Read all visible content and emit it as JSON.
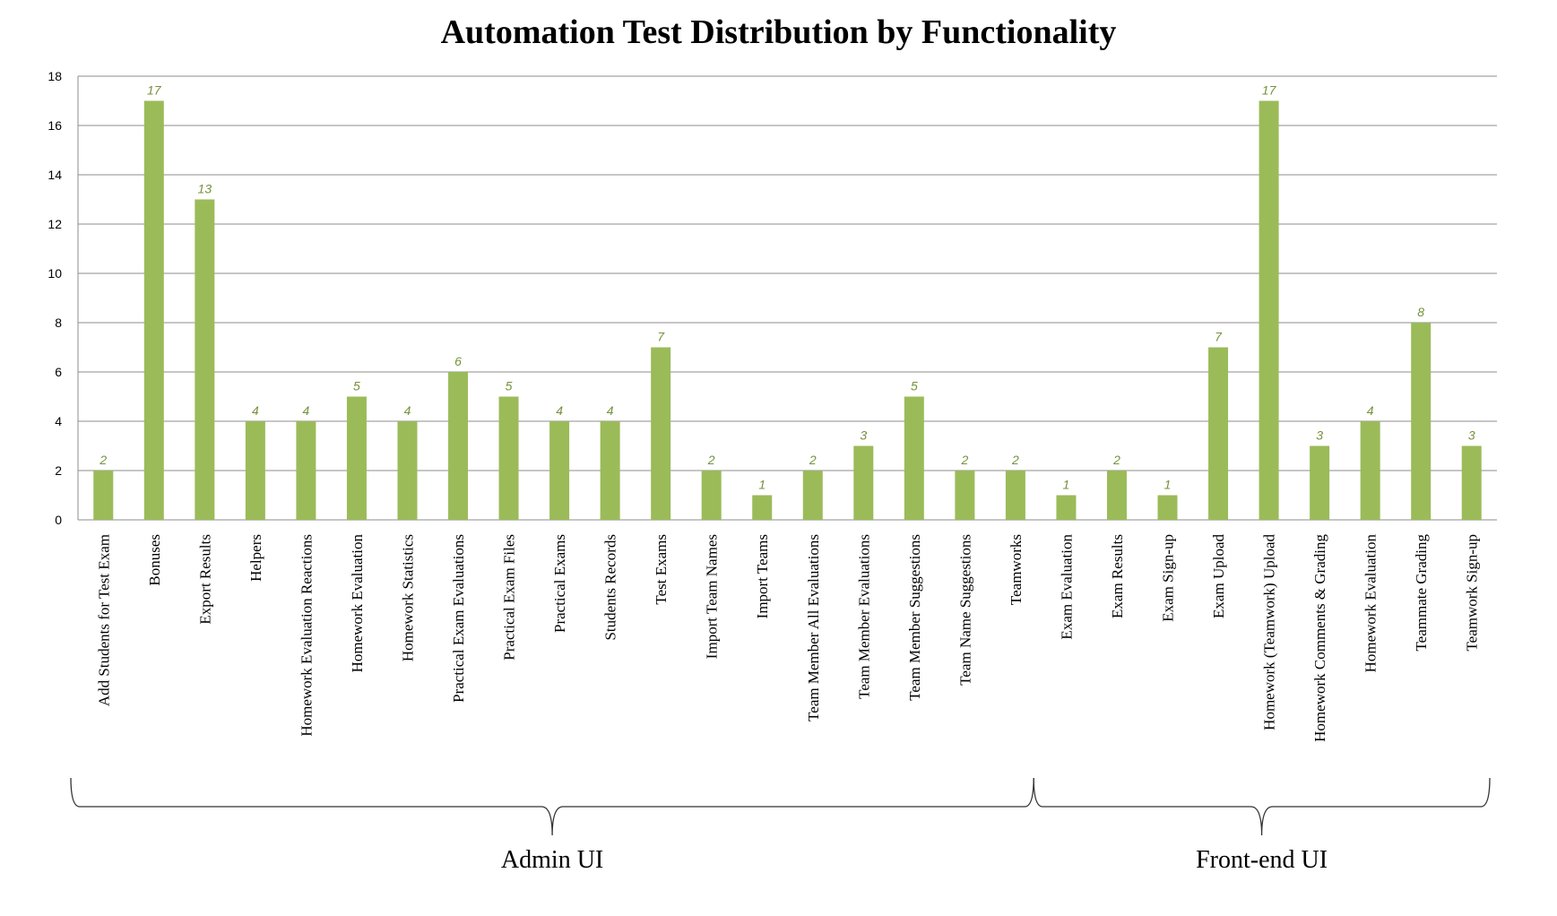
{
  "chart_data": {
    "type": "bar",
    "title": "Automation Test Distribution by Functionality",
    "xlabel": "",
    "ylabel": "",
    "ylim": [
      0,
      18
    ],
    "yticks": [
      0,
      2,
      4,
      6,
      8,
      10,
      12,
      14,
      16,
      18
    ],
    "grid": true,
    "legend": "none",
    "bar_color": "#9bbb59",
    "label_color": "#76923c",
    "categories": [
      "Add Students for Test Exam",
      "Bonuses",
      "Export Results",
      "Helpers",
      "Homework Evaluation Reactions",
      "Homework Evaluation",
      "Homework Statistics",
      "Practical Exam Evaluations",
      "Practical Exam Files",
      "Practical Exams",
      "Students Records",
      "Test Exams",
      "Import Team Names",
      "Import Teams",
      "Team Member All Evaluations",
      "Team Member Evaluations",
      "Team Member Suggestions",
      "Team Name Suggestions",
      "Teamworks",
      "Exam Evaluation",
      "Exam Results",
      "Exam Sign-up",
      "Exam Upload",
      "Homework (Teamwork) Upload",
      "Homework Comments & Grading",
      "Homework Evaluation",
      "Teammate Grading",
      "Teamwork Sign-up"
    ],
    "values": [
      2,
      17,
      13,
      4,
      4,
      5,
      4,
      6,
      5,
      4,
      4,
      7,
      2,
      1,
      2,
      3,
      5,
      2,
      2,
      1,
      2,
      1,
      7,
      17,
      3,
      4,
      8,
      3
    ],
    "groups": [
      {
        "label": "Admin UI",
        "start": 0,
        "end": 18
      },
      {
        "label": "Front-end UI",
        "start": 19,
        "end": 27
      }
    ]
  }
}
